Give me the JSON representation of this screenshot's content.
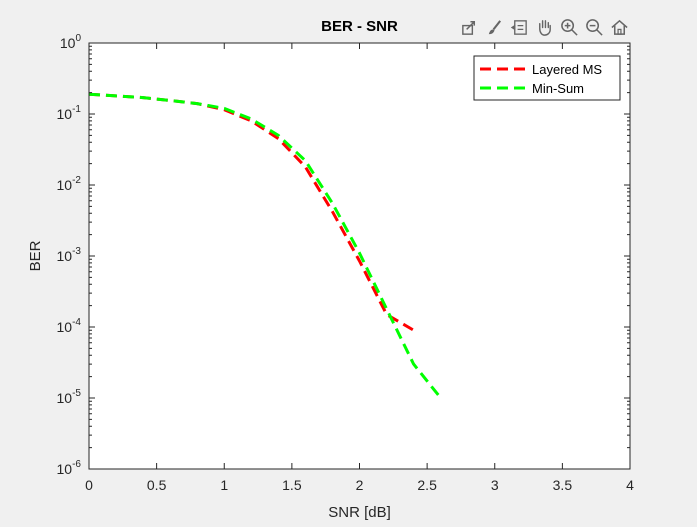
{
  "toolbar": {
    "icons": [
      "export-icon",
      "brush-icon",
      "data-tips-icon",
      "pan-hand-icon",
      "zoom-in-icon",
      "zoom-out-icon",
      "home-icon"
    ]
  },
  "colors": {
    "background": "#f0f0f0",
    "axes_background": "#ffffff",
    "layered_ms": "#ff0000",
    "min_sum": "#00ff00"
  },
  "chart_data": {
    "type": "line",
    "title": "BER - SNR",
    "xlabel": "SNR [dB]",
    "ylabel": "BER",
    "xlim": [
      0,
      4
    ],
    "ylim": [
      1e-06,
      1
    ],
    "yscale": "log",
    "grid": false,
    "legend_position": "top-right",
    "xticks": [
      {
        "value": 0,
        "label": "0"
      },
      {
        "value": 0.5,
        "label": "0.5"
      },
      {
        "value": 1,
        "label": "1"
      },
      {
        "value": 1.5,
        "label": "1.5"
      },
      {
        "value": 2,
        "label": "2"
      },
      {
        "value": 2.5,
        "label": "2.5"
      },
      {
        "value": 3,
        "label": "3"
      },
      {
        "value": 3.5,
        "label": "3.5"
      },
      {
        "value": 4,
        "label": "4"
      }
    ],
    "yticks": [
      {
        "value": 1,
        "base": "10",
        "exp": "0"
      },
      {
        "value": 0.1,
        "base": "10",
        "exp": "-1"
      },
      {
        "value": 0.01,
        "base": "10",
        "exp": "-2"
      },
      {
        "value": 0.001,
        "base": "10",
        "exp": "-3"
      },
      {
        "value": 0.0001,
        "base": "10",
        "exp": "-4"
      },
      {
        "value": 1e-05,
        "base": "10",
        "exp": "-5"
      },
      {
        "value": 1e-06,
        "base": "10",
        "exp": "-6"
      }
    ],
    "series": [
      {
        "name": "Layered MS",
        "color": "#ff0000",
        "style": "dashed",
        "x": [
          0,
          0.2,
          0.4,
          0.6,
          0.8,
          1.0,
          1.2,
          1.4,
          1.6,
          1.8,
          2.0,
          2.2,
          2.4
        ],
        "y": [
          0.19,
          0.18,
          0.17,
          0.155,
          0.14,
          0.115,
          0.08,
          0.045,
          0.018,
          0.0042,
          0.00085,
          0.00015,
          9e-05
        ]
      },
      {
        "name": "Min-Sum",
        "color": "#00ff00",
        "style": "dashed",
        "x": [
          0,
          0.2,
          0.4,
          0.6,
          0.8,
          1.0,
          1.2,
          1.4,
          1.6,
          1.8,
          2.0,
          2.2,
          2.4,
          2.6
        ],
        "y": [
          0.19,
          0.18,
          0.17,
          0.155,
          0.14,
          0.12,
          0.085,
          0.05,
          0.022,
          0.0055,
          0.0011,
          0.00018,
          3e-05,
          1e-05
        ]
      }
    ]
  }
}
